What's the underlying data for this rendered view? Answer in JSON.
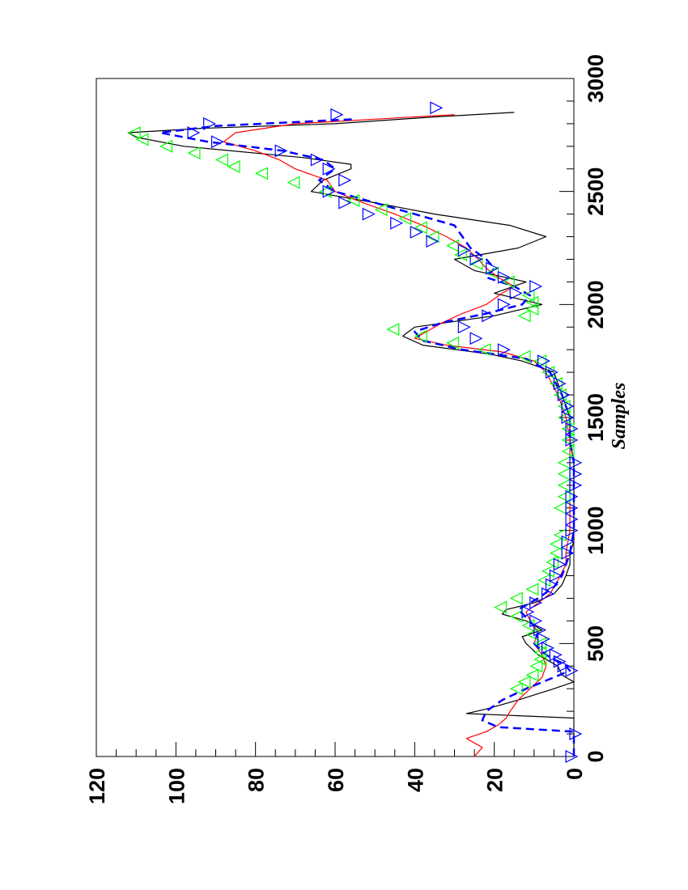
{
  "chart_data": {
    "type": "line",
    "orientation": "rotated-90-ccw",
    "title": "",
    "xlabel": "Samples",
    "ylabel": "",
    "xlim": [
      0,
      3000
    ],
    "ylim": [
      0,
      120
    ],
    "x_ticks": [
      0,
      500,
      1000,
      1500,
      2000,
      2500,
      3000
    ],
    "y_ticks": [
      0,
      20,
      40,
      60,
      80,
      100,
      120
    ],
    "x_tick_labels": [
      "0",
      "500",
      "1000",
      "1500",
      "2000",
      "2500",
      "3000"
    ],
    "y_tick_labels": [
      "0",
      "20",
      "40",
      "60",
      "80",
      "100",
      "120"
    ],
    "legend": "none",
    "series": [
      {
        "name": "black-solid",
        "color": "#000000",
        "style": "solid",
        "marker": "none",
        "x": [
          0,
          170,
          190,
          210,
          250,
          300,
          330,
          360,
          400,
          450,
          500,
          530,
          560,
          600,
          630,
          650,
          680,
          720,
          760,
          800,
          850,
          900,
          950,
          1000,
          1100,
          1200,
          1300,
          1400,
          1500,
          1600,
          1700,
          1750,
          1780,
          1820,
          1860,
          1900,
          1950,
          2000,
          2050,
          2100,
          2150,
          2200,
          2250,
          2300,
          2350,
          2400,
          2450,
          2500,
          2550,
          2600,
          2620,
          2650,
          2700,
          2740,
          2760,
          2780,
          2800,
          2830,
          2850
        ],
        "y": [
          0,
          0,
          27,
          22,
          14,
          5,
          0,
          3,
          4,
          9,
          12,
          13,
          8,
          12,
          18,
          17,
          10,
          5,
          3,
          2,
          1,
          1,
          0,
          0,
          0,
          0,
          0,
          1,
          1,
          3,
          5,
          13,
          21,
          38,
          43,
          40,
          20,
          8,
          20,
          12,
          25,
          30,
          14,
          7,
          16,
          35,
          50,
          66,
          63,
          56,
          56,
          68,
          98,
          110,
          112,
          93,
          60,
          35,
          15
        ]
      },
      {
        "name": "red-noisy",
        "color": "#ff0000",
        "style": "solid",
        "marker": "none",
        "x": [
          0,
          40,
          80,
          110,
          140,
          170,
          200,
          250,
          300,
          350,
          400,
          450,
          500,
          550,
          600,
          640,
          680,
          720,
          780,
          850,
          900,
          1000,
          1100,
          1200,
          1300,
          1400,
          1500,
          1600,
          1700,
          1750,
          1790,
          1820,
          1850,
          1880,
          1920,
          1960,
          2000,
          2050,
          2080,
          2120,
          2160,
          2200,
          2250,
          2300,
          2350,
          2400,
          2450,
          2500,
          2550,
          2600,
          2640,
          2680,
          2720,
          2760,
          2800,
          2840
        ],
        "y": [
          25,
          23,
          27,
          22,
          19,
          17,
          16,
          14,
          11,
          8,
          7,
          8,
          10,
          9,
          11,
          12,
          9,
          6,
          4,
          2,
          2,
          1,
          1,
          1,
          1,
          1,
          2,
          4,
          7,
          10,
          18,
          32,
          40,
          37,
          33,
          28,
          22,
          18,
          15,
          19,
          22,
          24,
          27,
          32,
          38,
          45,
          53,
          60,
          62,
          70,
          74,
          80,
          88,
          85,
          70,
          30
        ]
      },
      {
        "name": "blue-dashed",
        "color": "#0000ff",
        "style": "dashed",
        "marker": "none",
        "x": [
          0,
          110,
          130,
          160,
          200,
          250,
          300,
          350,
          380,
          400,
          450,
          500,
          550,
          600,
          650,
          700,
          750,
          800,
          900,
          1000,
          1100,
          1200,
          1300,
          1400,
          1500,
          1600,
          1700,
          1760,
          1800,
          1840,
          1880,
          1920,
          1960,
          2000,
          2040,
          2080,
          2120,
          2160,
          2200,
          2250,
          2300,
          2350,
          2400,
          2450,
          2500,
          2550,
          2600,
          2640,
          2680,
          2720,
          2760,
          2790,
          2820
        ],
        "y": [
          0,
          0,
          19,
          23,
          22,
          18,
          12,
          5,
          1,
          2,
          7,
          10,
          9,
          11,
          14,
          9,
          5,
          3,
          1,
          0,
          0,
          0,
          0,
          1,
          1,
          3,
          6,
          12,
          28,
          38,
          40,
          33,
          22,
          13,
          11,
          15,
          22,
          20,
          22,
          26,
          28,
          30,
          40,
          50,
          60,
          64,
          60,
          63,
          73,
          92,
          104,
          90,
          55
        ]
      },
      {
        "name": "green-left-triangles",
        "color": "#00ff00",
        "style": "markers",
        "marker": "triangle-left",
        "x": [
          300,
          330,
          360,
          400,
          430,
          460,
          500,
          540,
          580,
          620,
          660,
          700,
          740,
          780,
          820,
          860,
          900,
          940,
          980,
          1100,
          1150,
          1200,
          1250,
          1300,
          1350,
          1400,
          1450,
          1500,
          1550,
          1600,
          1650,
          1700,
          1750,
          1770,
          1800,
          1830,
          1860,
          1890,
          1950,
          1980,
          2010,
          2040,
          2100,
          2140,
          2180,
          2220,
          2260,
          2300,
          2340,
          2380,
          2420,
          2460,
          2500,
          2540,
          2580,
          2610,
          2640,
          2670,
          2700,
          2730,
          2760
        ],
        "y": [
          14,
          12,
          10,
          9,
          8,
          8,
          8,
          10,
          11,
          14,
          18,
          14,
          10,
          7,
          6,
          5,
          4,
          4,
          3,
          3,
          2,
          2,
          2,
          2,
          1,
          1,
          1,
          2,
          2,
          3,
          4,
          6,
          8,
          12,
          22,
          30,
          38,
          45,
          12,
          10,
          10,
          11,
          16,
          20,
          24,
          28,
          30,
          35,
          38,
          42,
          48,
          55,
          62,
          70,
          78,
          85,
          88,
          95,
          102,
          108,
          110
        ]
      },
      {
        "name": "blue-right-triangles",
        "color": "#0000ff",
        "style": "markers",
        "marker": "triangle-right",
        "x": [
          0,
          100,
          380,
          400,
          420,
          450,
          480,
          520,
          560,
          600,
          640,
          680,
          720,
          760,
          800,
          850,
          900,
          950,
          1000,
          1050,
          1100,
          1150,
          1200,
          1250,
          1300,
          1400,
          1450,
          1500,
          1550,
          1600,
          1650,
          1700,
          1750,
          1800,
          1850,
          1900,
          1950,
          2000,
          2050,
          2080,
          2120,
          2160,
          2200,
          2240,
          2280,
          2320,
          2360,
          2400,
          2450,
          2500,
          2550,
          2600,
          2640,
          2680,
          2720,
          2760,
          2800,
          2840,
          2870
        ],
        "y": [
          1,
          0,
          1,
          3,
          4,
          5,
          7,
          8,
          9,
          10,
          12,
          10,
          7,
          6,
          5,
          4,
          2,
          2,
          1,
          1,
          1,
          1,
          0,
          0,
          0,
          1,
          1,
          2,
          2,
          3,
          4,
          6,
          8,
          18,
          25,
          28,
          22,
          18,
          15,
          10,
          18,
          21,
          25,
          28,
          36,
          40,
          45,
          52,
          58,
          62,
          58,
          62,
          65,
          74,
          90,
          96,
          92,
          60,
          35
        ]
      }
    ]
  }
}
